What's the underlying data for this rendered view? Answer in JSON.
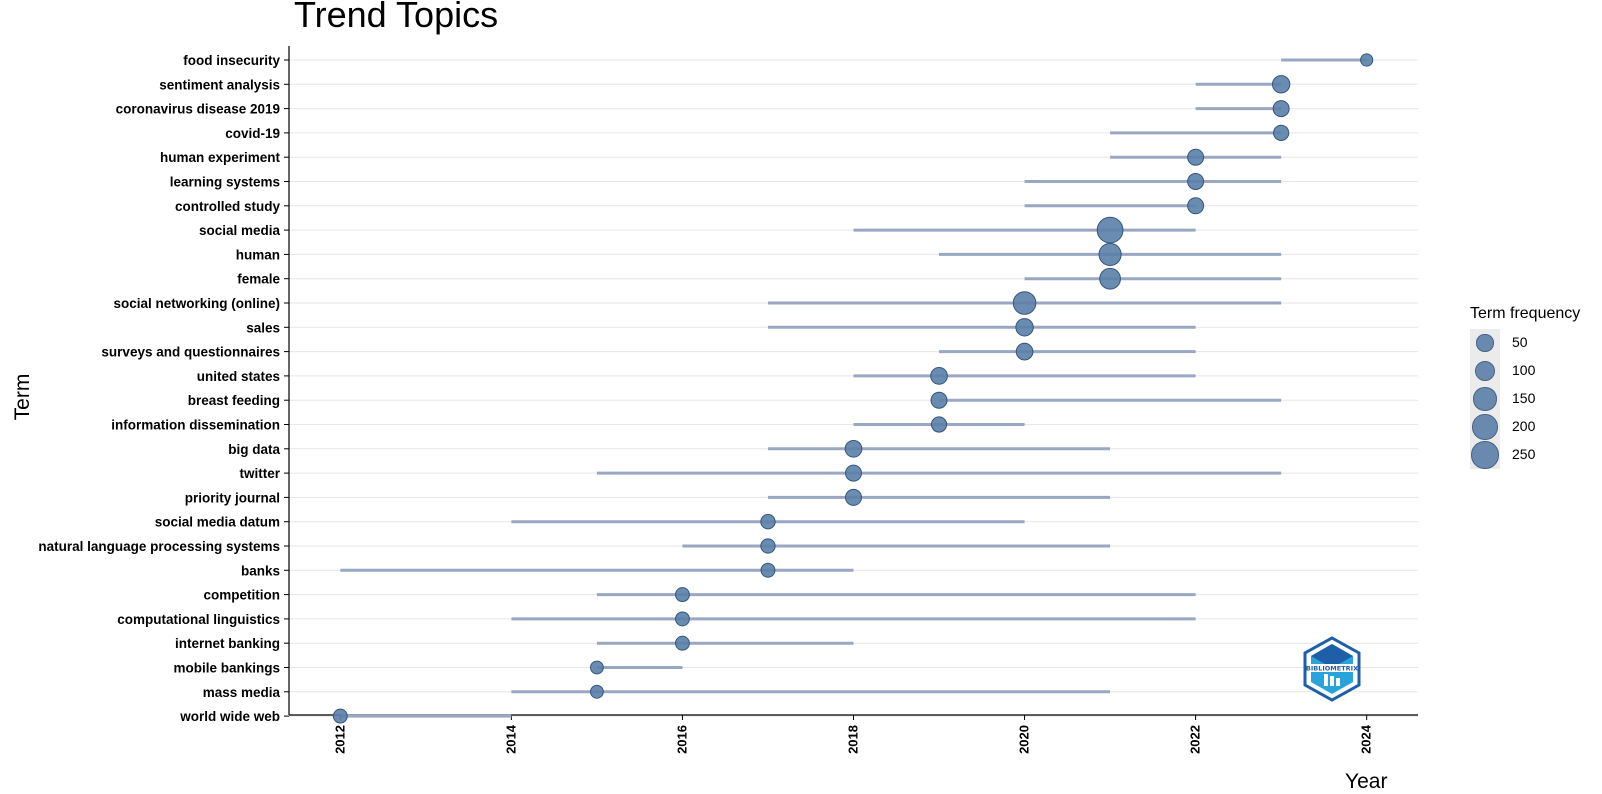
{
  "chart_data": {
    "type": "scatter",
    "title": "Trend Topics",
    "xlabel": "Year",
    "ylabel": "Term",
    "xlim": [
      2011.4,
      2024.6
    ],
    "x_ticks": [
      "2012",
      "2014",
      "2016",
      "2018",
      "2020",
      "2022",
      "2024"
    ],
    "grid": true,
    "legend": {
      "title": "Term frequency",
      "position": "right",
      "entries": [
        "50",
        "100",
        "150",
        "200",
        "250"
      ]
    },
    "colors": {
      "point": "#5b7fa8",
      "point_stroke": "#34557c",
      "segment": "#9aa7c2",
      "gridline": "#e6e6e6"
    },
    "terms": [
      {
        "term": "food insecurity",
        "q1": 2023,
        "median": 2024,
        "q3": 2024,
        "freq": 20
      },
      {
        "term": "sentiment analysis",
        "q1": 2022,
        "median": 2023,
        "q3": 2023,
        "freq": 80
      },
      {
        "term": "coronavirus disease 2019",
        "q1": 2022,
        "median": 2023,
        "q3": 2023,
        "freq": 60
      },
      {
        "term": "covid-19",
        "q1": 2021,
        "median": 2023,
        "q3": 2023,
        "freq": 50
      },
      {
        "term": "human experiment",
        "q1": 2021,
        "median": 2022,
        "q3": 2023,
        "freq": 60
      },
      {
        "term": "learning systems",
        "q1": 2020,
        "median": 2022,
        "q3": 2023,
        "freq": 60
      },
      {
        "term": "controlled study",
        "q1": 2020,
        "median": 2022,
        "q3": 2022,
        "freq": 60
      },
      {
        "term": "social media",
        "q1": 2018,
        "median": 2021,
        "q3": 2022,
        "freq": 260
      },
      {
        "term": "human",
        "q1": 2019,
        "median": 2021,
        "q3": 2023,
        "freq": 170
      },
      {
        "term": "female",
        "q1": 2020,
        "median": 2021,
        "q3": 2023,
        "freq": 140
      },
      {
        "term": "social networking (online)",
        "q1": 2017,
        "median": 2020,
        "q3": 2023,
        "freq": 180
      },
      {
        "term": "sales",
        "q1": 2017,
        "median": 2020,
        "q3": 2022,
        "freq": 80
      },
      {
        "term": "surveys and questionnaires",
        "q1": 2019,
        "median": 2020,
        "q3": 2022,
        "freq": 70
      },
      {
        "term": "united states",
        "q1": 2018,
        "median": 2019,
        "q3": 2022,
        "freq": 70
      },
      {
        "term": "breast feeding",
        "q1": 2019,
        "median": 2019,
        "q3": 2023,
        "freq": 60
      },
      {
        "term": "information dissemination",
        "q1": 2018,
        "median": 2019,
        "q3": 2020,
        "freq": 50
      },
      {
        "term": "big data",
        "q1": 2017,
        "median": 2018,
        "q3": 2021,
        "freq": 70
      },
      {
        "term": "twitter",
        "q1": 2015,
        "median": 2018,
        "q3": 2023,
        "freq": 60
      },
      {
        "term": "priority journal",
        "q1": 2017,
        "median": 2018,
        "q3": 2021,
        "freq": 60
      },
      {
        "term": "social media datum",
        "q1": 2014,
        "median": 2017,
        "q3": 2020,
        "freq": 40
      },
      {
        "term": "natural language processing systems",
        "q1": 2016,
        "median": 2017,
        "q3": 2021,
        "freq": 40
      },
      {
        "term": "banks",
        "q1": 2012,
        "median": 2017,
        "q3": 2018,
        "freq": 35
      },
      {
        "term": "competition",
        "q1": 2015,
        "median": 2016,
        "q3": 2022,
        "freq": 35
      },
      {
        "term": "computational linguistics",
        "q1": 2014,
        "median": 2016,
        "q3": 2022,
        "freq": 35
      },
      {
        "term": "internet banking",
        "q1": 2015,
        "median": 2016,
        "q3": 2018,
        "freq": 35
      },
      {
        "term": "mobile bankings",
        "q1": 2015,
        "median": 2015,
        "q3": 2016,
        "freq": 25
      },
      {
        "term": "mass media",
        "q1": 2014,
        "median": 2015,
        "q3": 2021,
        "freq": 25
      },
      {
        "term": "world wide web",
        "q1": 2012,
        "median": 2012,
        "q3": 2014,
        "freq": 35
      }
    ]
  },
  "logo": {
    "text": "BIBLIOMETRIX",
    "colors": [
      "#1f5ea8",
      "#29a3dc"
    ]
  }
}
